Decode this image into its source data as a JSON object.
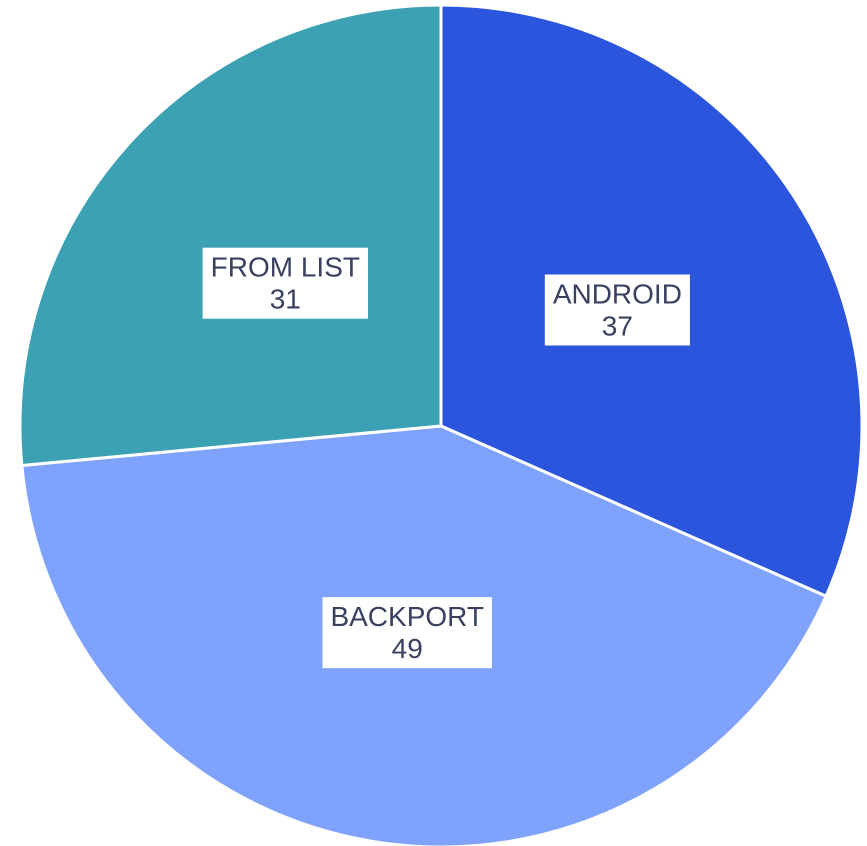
{
  "chart_data": {
    "type": "pie",
    "categories": [
      "ANDROID",
      "BACKPORT",
      "FROM LIST"
    ],
    "values": [
      37,
      49,
      31
    ],
    "colors": [
      "#2a55dc",
      "#7fa2fc",
      "#3ba1b3"
    ]
  }
}
